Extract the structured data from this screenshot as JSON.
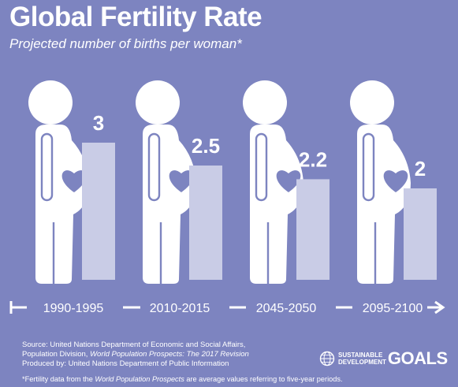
{
  "title": "Global Fertility Rate",
  "subtitle": "Projected number of births per woman*",
  "chart_data": {
    "type": "bar",
    "categories": [
      "1990-1995",
      "2010-2015",
      "2045-2050",
      "2095-2100"
    ],
    "values": [
      3,
      2.5,
      2.2,
      2
    ],
    "value_labels": [
      "3",
      "2.5",
      "2.2",
      "2"
    ],
    "title": "Global Fertility Rate",
    "subtitle": "Projected number of births per woman*"
  },
  "colors": {
    "background": "#7d84c0",
    "bar": "#c9cce6",
    "figure": "#ffffff",
    "heart": "#7d84c0"
  },
  "source": {
    "line1": "Source: United Nations Department of Economic and Social Affairs,",
    "line2_plain": "Population Division, ",
    "line2_italic": "World Population Prospects: The 2017 Revision",
    "line3": "Produced by: United Nations Department of Public Information"
  },
  "footnote": {
    "pre": "*Fertility data from the ",
    "italic": "World Population Prospects",
    "post": " are average values referring to five-year periods."
  },
  "logo": {
    "line1": "SUSTAINABLE",
    "line2": "DEVELOPMENT",
    "big": "GOALS"
  }
}
